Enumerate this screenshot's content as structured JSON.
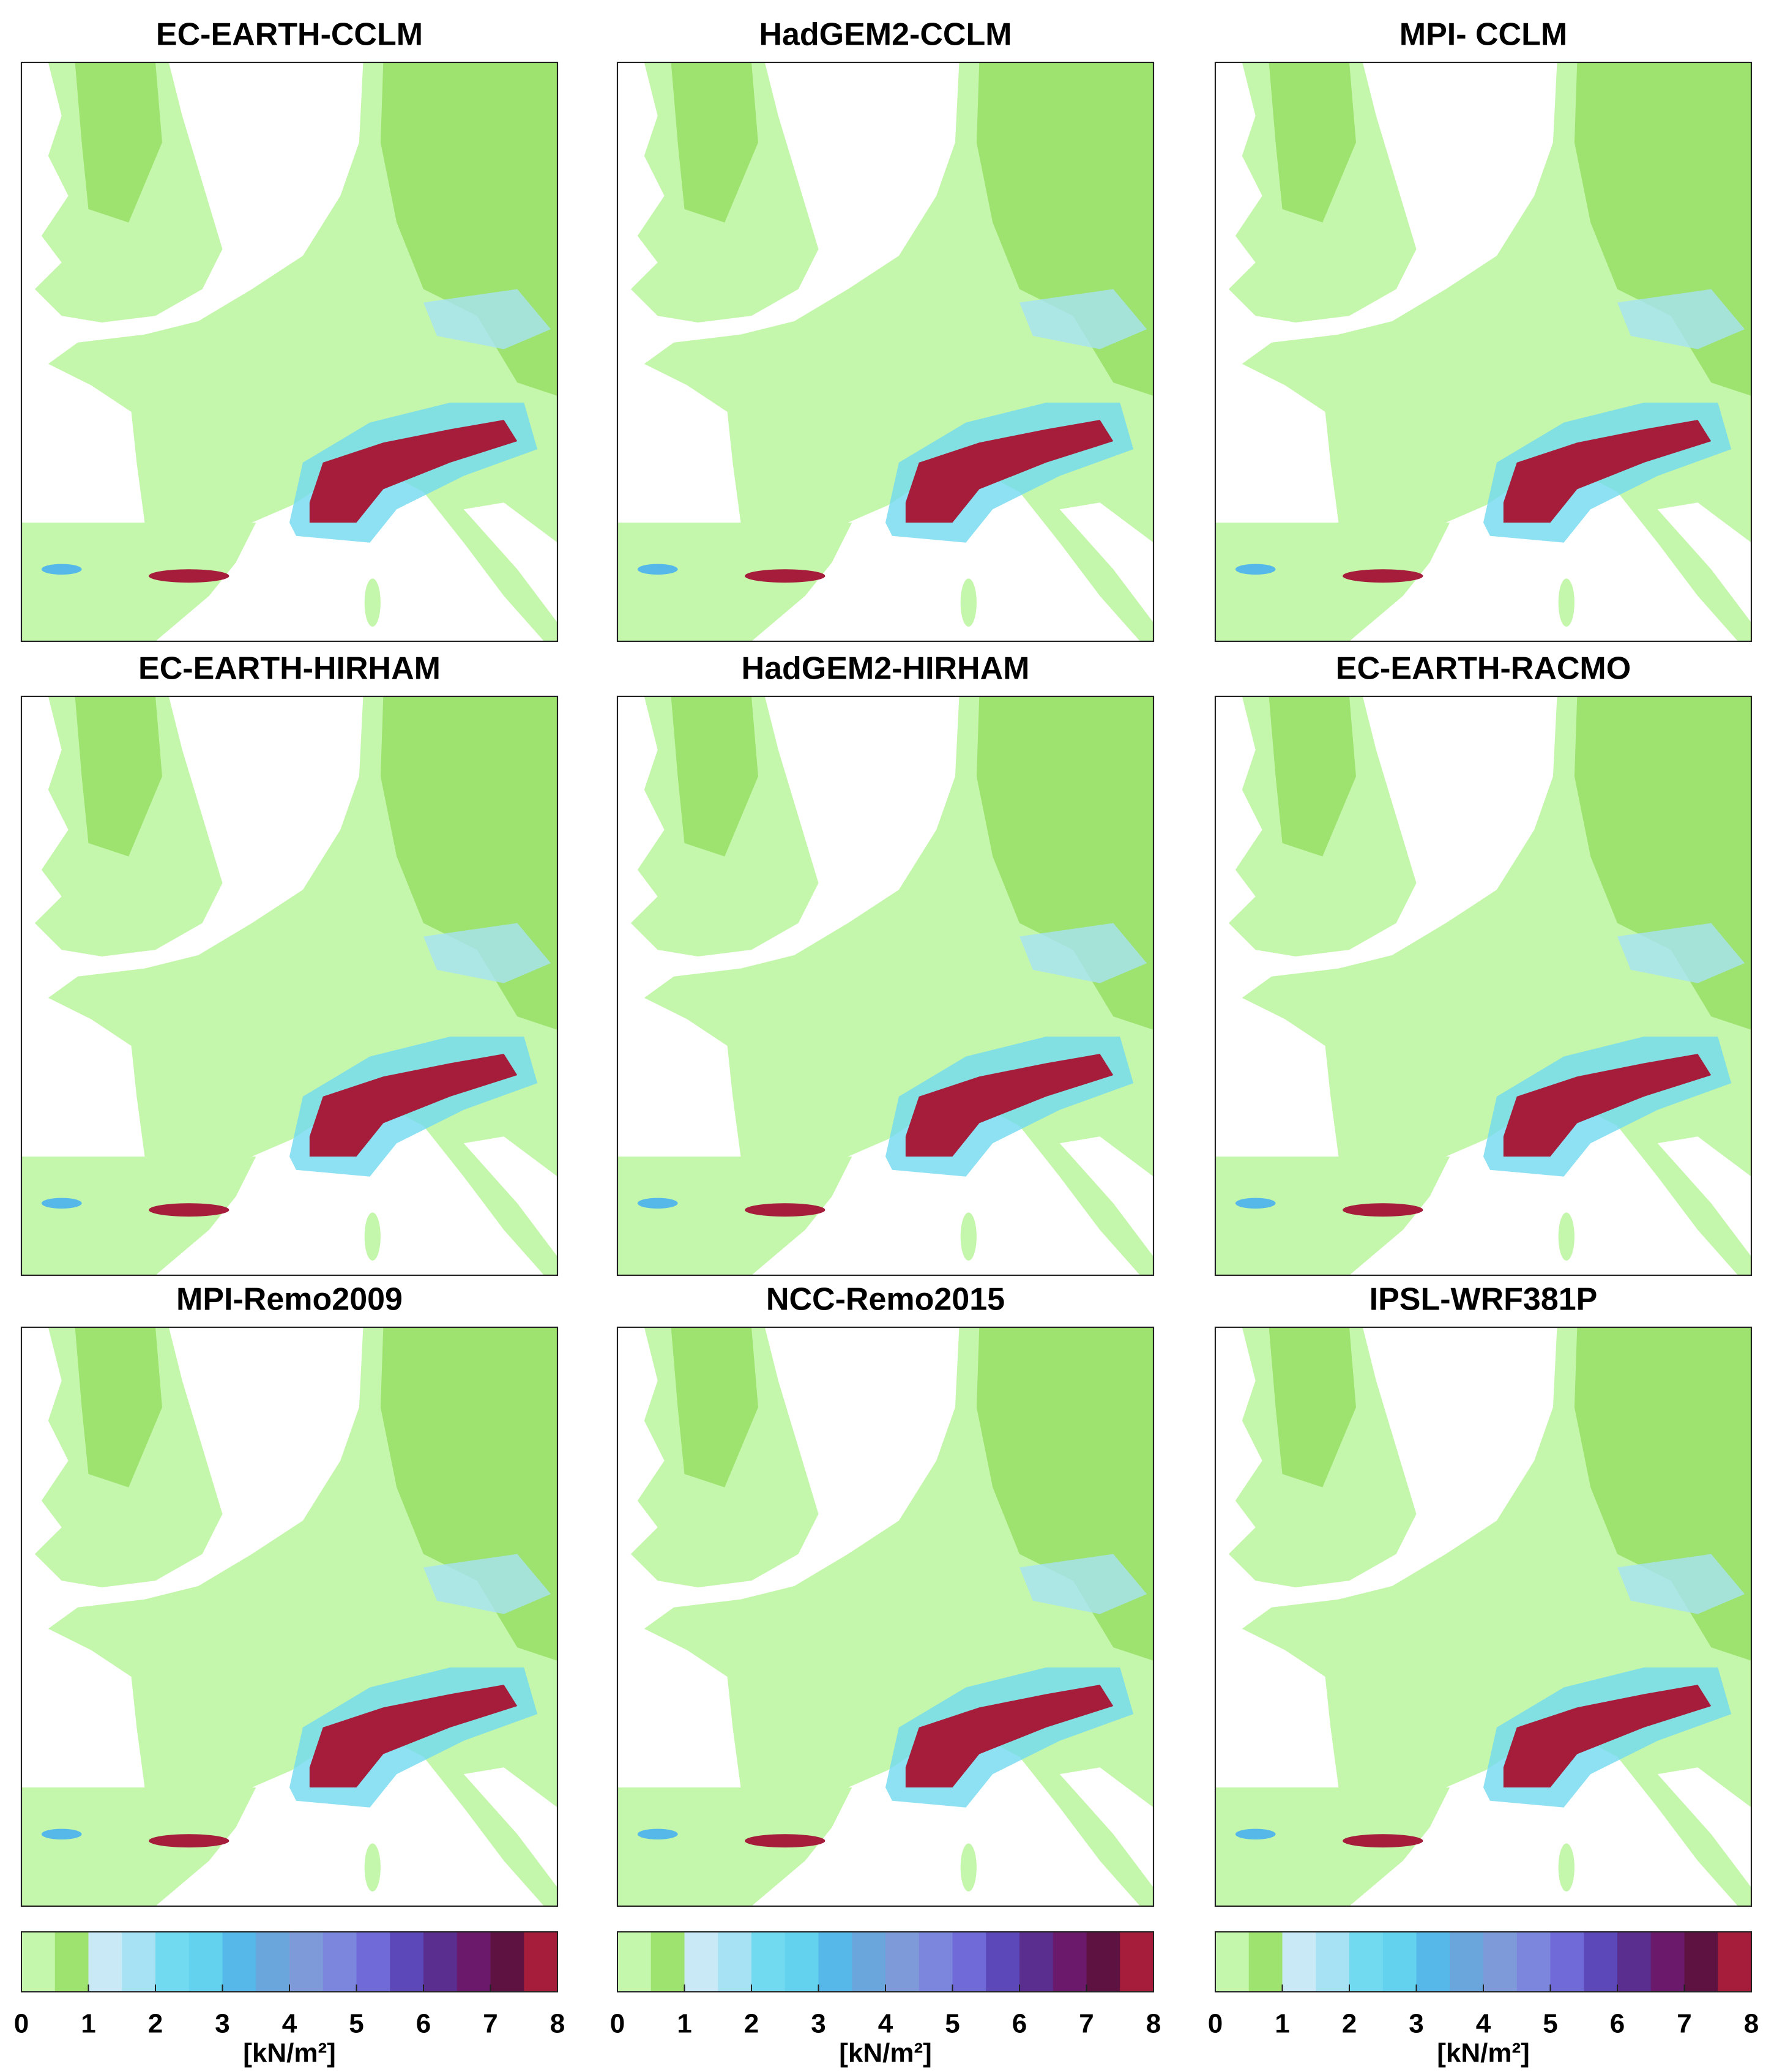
{
  "panels": [
    {
      "title": "EC-EARTH-CCLM"
    },
    {
      "title": "HadGEM2-CCLM"
    },
    {
      "title": "MPI- CCLM"
    },
    {
      "title": "EC-EARTH-HIRHAM"
    },
    {
      "title": "HadGEM2-HIRHAM"
    },
    {
      "title": "EC-EARTH-RACMO"
    },
    {
      "title": "MPI-Remo2009"
    },
    {
      "title": "NCC-Remo2015"
    },
    {
      "title": "IPSL-WRF381P"
    }
  ],
  "colorbar": {
    "colors": [
      "#c4f7ac",
      "#9ee36f",
      "#c8e9f5",
      "#a6e2f4",
      "#72daf0",
      "#62d2ee",
      "#55b8e8",
      "#6aa6dc",
      "#7e9ad8",
      "#7b86dc",
      "#6f6ad8",
      "#5c48b8",
      "#5a2e8e",
      "#6b1a6b",
      "#5e1242",
      "#a51d3a"
    ],
    "lim": [
      0,
      8
    ],
    "ticks": [
      0,
      1,
      2,
      3,
      4,
      5,
      6,
      7,
      8
    ],
    "label": "[kN/m²]"
  }
}
